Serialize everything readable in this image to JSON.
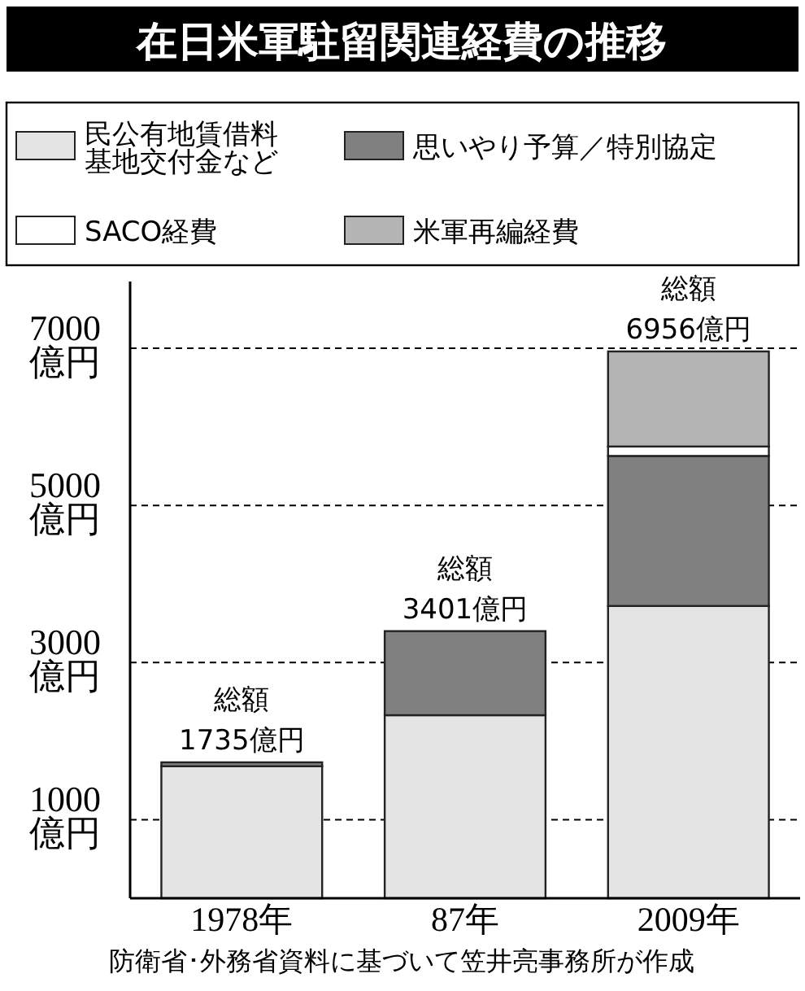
{
  "chart_data": {
    "type": "bar",
    "stacked": true,
    "title": "在日米軍駐留関連経費の推移",
    "categories": [
      "1978年",
      "87年",
      "2009年"
    ],
    "series": [
      {
        "name": "民公有地賃借料基地交付金など",
        "color": "#e4e4e4",
        "values": [
          1680,
          2330,
          3720
        ]
      },
      {
        "name": "思いやり予算／特別協定",
        "color": "#808080",
        "values": [
          50,
          1070,
          1910
        ]
      },
      {
        "name": "SACO経費",
        "color": "#ffffff",
        "values": [
          null,
          null,
          120
        ]
      },
      {
        "name": "米軍再編経費",
        "color": "#b4b4b4",
        "values": [
          null,
          null,
          1210
        ]
      }
    ],
    "totals": [
      "総額\n1735億円",
      "総額\n3401億円",
      "総額\n6956億円"
    ],
    "ylim": [
      0,
      7850
    ],
    "yticks": [
      {
        "value": 1000,
        "label": "1000\n億円"
      },
      {
        "value": 3000,
        "label": "3000\n億円"
      },
      {
        "value": 5000,
        "label": "5000\n億円"
      },
      {
        "value": 7000,
        "label": "7000\n億円"
      }
    ],
    "grid": "y",
    "legend": "top",
    "annotations": [
      "防衛省･外務省資料に基づいて笠井亮事務所が作成"
    ]
  }
}
